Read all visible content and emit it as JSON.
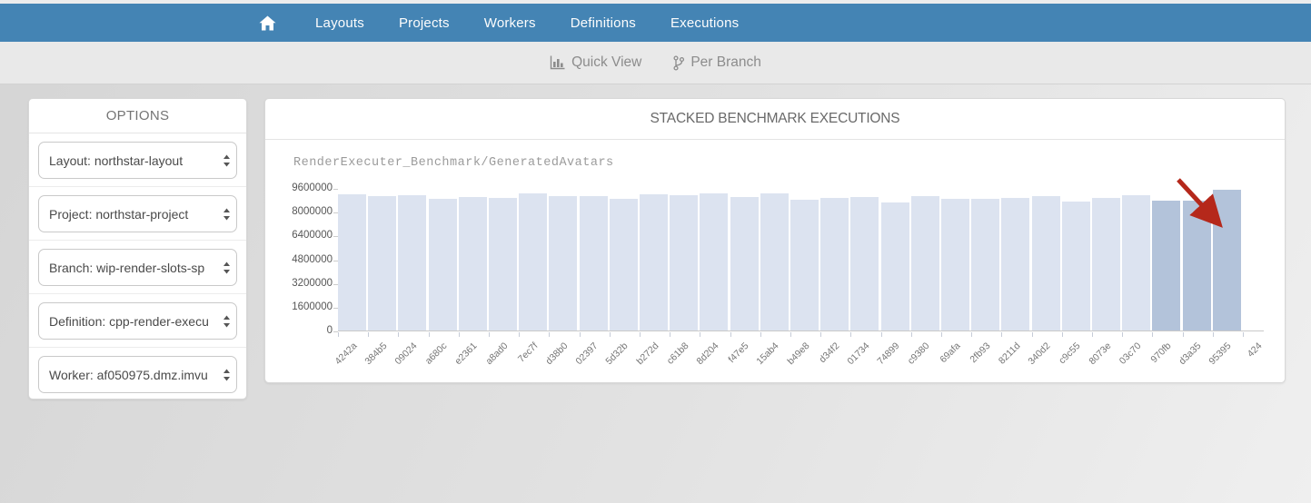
{
  "navbar": {
    "items": [
      {
        "label": "Layouts"
      },
      {
        "label": "Projects"
      },
      {
        "label": "Workers"
      },
      {
        "label": "Definitions"
      },
      {
        "label": "Executions"
      }
    ]
  },
  "subnav": {
    "quick_view": "Quick View",
    "per_branch": "Per Branch"
  },
  "options_panel": {
    "title": "OPTIONS",
    "selects": [
      {
        "id": "layout",
        "value": "Layout: northstar-layout"
      },
      {
        "id": "project",
        "value": "Project: northstar-project"
      },
      {
        "id": "branch",
        "value": "Branch: wip-render-slots-sp"
      },
      {
        "id": "definition",
        "value": "Definition: cpp-render-execu"
      },
      {
        "id": "worker",
        "value": "Worker: af050975.dmz.imvu"
      }
    ]
  },
  "chart_panel": {
    "title": "STACKED BENCHMARK EXECUTIONS"
  },
  "chart_data": {
    "type": "bar",
    "title": "RenderExecuter_Benchmark/GeneratedAvatars",
    "categories": [
      "4242a",
      "384b5",
      "09024",
      "a680c",
      "e2361",
      "a8ad0",
      "7ec7f",
      "d38b0",
      "02397",
      "5d32b",
      "b272d",
      "c61b8",
      "8d204",
      "f47e5",
      "15ab4",
      "b49e8",
      "d34f2",
      "01734",
      "74899",
      "c9380",
      "69afa",
      "2fb93",
      "8211d",
      "340d2",
      "c9c55",
      "8073e",
      "03c70",
      "970fb",
      "d3a35",
      "95395",
      "424"
    ],
    "values": [
      9200000,
      9050000,
      9120000,
      8850000,
      8980000,
      8920000,
      9230000,
      9060000,
      9060000,
      8850000,
      9180000,
      9120000,
      9230000,
      9000000,
      9260000,
      8800000,
      8920000,
      9000000,
      8650000,
      9080000,
      8860000,
      8870000,
      8950000,
      9080000,
      8670000,
      8950000,
      9100000,
      8750000,
      8750000,
      9480000,
      null
    ],
    "xlabel": "",
    "ylabel": "",
    "ylim": [
      0,
      9600000
    ],
    "yticks": [
      0,
      1600000,
      3200000,
      4800000,
      6400000,
      8000000,
      9600000
    ],
    "grid": false,
    "legend": null,
    "bar_colors": {
      "default": "#dce3f0",
      "highlight": "#b3c3da"
    },
    "highlight_indices": [
      27,
      28,
      29
    ],
    "annotation": {
      "shape": "red-arrow",
      "color": "#b5281b",
      "points_at": "95395"
    }
  },
  "icons": {
    "home": "home-icon",
    "quick_view": "bar-chart-icon",
    "per_branch": "git-branch-icon",
    "select_caret": "up-down-caret-icon"
  },
  "colors": {
    "navbar": "#4484b4",
    "subnav_bg": "#e9e9e9",
    "bar_default": "#dce3f0",
    "bar_highlight": "#b3c3da",
    "arrow": "#b5281b"
  }
}
